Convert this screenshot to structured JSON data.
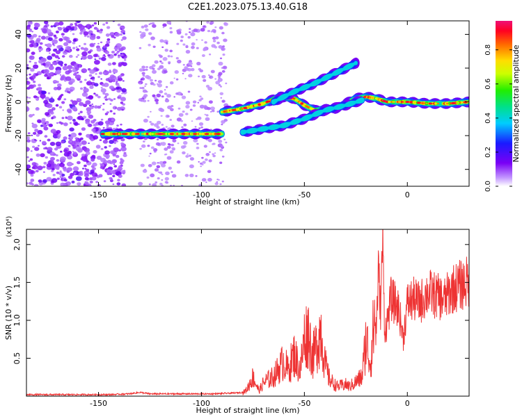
{
  "title": "C2E1.2023.075.13.40.G18",
  "colors": {
    "snr_line": "#ee3333",
    "background": "#ffffff",
    "axis": "#000000"
  },
  "chart_data": [
    {
      "type": "heatmap",
      "xlabel": "Height of straight line (km)",
      "ylabel": "Frequency (Hz)",
      "xlim": [
        -185,
        30
      ],
      "ylim": [
        -50,
        48
      ],
      "x_ticks": [
        -150,
        -100,
        -50,
        0
      ],
      "x_tick_labels": [
        "-150",
        "-100",
        "-50",
        "0"
      ],
      "y_ticks": [
        -40,
        -20,
        0,
        20,
        40
      ],
      "y_tick_labels": [
        "-40",
        "-20",
        "0",
        "20",
        "40"
      ],
      "colorbar": {
        "label": "Normalized spectral amplitude",
        "range": [
          0,
          0.97
        ],
        "ticks": [
          0.0,
          0.2,
          0.4,
          0.6,
          0.8
        ],
        "tick_labels": [
          "0.0",
          "0.2",
          "0.4",
          "0.6",
          "0.8"
        ],
        "colormap": "rainbow (white → violet → blue → cyan → green → yellow → red → magenta)"
      },
      "features": [
        {
          "name": "noise band",
          "x_range": [
            -185,
            -137
          ],
          "frequency_range": [
            -50,
            48
          ],
          "amplitude": 0.1
        },
        {
          "name": "noise band",
          "x_range": [
            -130,
            -88
          ],
          "frequency_range": [
            -50,
            48
          ],
          "amplitude": 0.05
        },
        {
          "name": "ridge",
          "points": [
            [
              -148,
              -19
            ],
            [
              -135,
              -19
            ],
            [
              -120,
              -19
            ],
            [
              -105,
              -19
            ],
            [
              -90,
              -19
            ]
          ],
          "amplitude": 0.8
        },
        {
          "name": "ridge",
          "points": [
            [
              -90,
              -6
            ],
            [
              -80,
              -4
            ],
            [
              -70,
              -1
            ],
            [
              -62,
              3
            ],
            [
              -55,
              2
            ],
            [
              -50,
              -2
            ],
            [
              -45,
              -5
            ],
            [
              -35,
              -4
            ],
            [
              -25,
              2
            ],
            [
              -20,
              3
            ],
            [
              -15,
              2
            ],
            [
              -10,
              0
            ],
            [
              0,
              0
            ],
            [
              10,
              -1
            ],
            [
              20,
              -1
            ],
            [
              30,
              0
            ]
          ],
          "amplitude": 0.7
        },
        {
          "name": "ridge",
          "points": [
            [
              -80,
              -18
            ],
            [
              -70,
              -16
            ],
            [
              -60,
              -14
            ],
            [
              -50,
              -10
            ],
            [
              -40,
              -5
            ],
            [
              -30,
              -2
            ],
            [
              -22,
              1
            ]
          ],
          "amplitude": 0.3
        },
        {
          "name": "ridge",
          "points": [
            [
              -65,
              0
            ],
            [
              -55,
              6
            ],
            [
              -45,
              11
            ],
            [
              -35,
              17
            ],
            [
              -25,
              23
            ]
          ],
          "amplitude": 0.3
        }
      ]
    },
    {
      "type": "line",
      "xlabel": "Height of straight line (km)",
      "ylabel": "SNR (10 * v/v)",
      "y_multiplier": "(x10⁴)",
      "xlim": [
        -185,
        30
      ],
      "ylim": [
        0,
        2.2
      ],
      "x_ticks": [
        -150,
        -100,
        -50,
        0
      ],
      "x_tick_labels": [
        "-150",
        "-100",
        "-50",
        "0"
      ],
      "y_ticks": [
        0.5,
        1.0,
        1.5,
        2.0
      ],
      "y_tick_labels": [
        "0.5",
        "1.0",
        "1.5",
        "2.0"
      ],
      "series": [
        {
          "x": [
            -185,
            -175,
            -165,
            -155,
            -145,
            -135,
            -130,
            -125,
            -115,
            -105,
            -95,
            -85,
            -80,
            -78,
            -75,
            -73,
            -72,
            -70,
            -68,
            -65,
            -62,
            -60,
            -58,
            -55,
            -52,
            -50,
            -48,
            -46,
            -44,
            -42,
            -40,
            -38,
            -36,
            -34,
            -30,
            -28,
            -25,
            -22,
            -20,
            -18,
            -16,
            -15,
            -14,
            -13,
            -12,
            -11,
            -10,
            -8,
            -6,
            -4,
            -2,
            0,
            3,
            6,
            10,
            14,
            18,
            22,
            26,
            30
          ],
          "values": [
            0.02,
            0.02,
            0.02,
            0.02,
            0.02,
            0.03,
            0.05,
            0.03,
            0.03,
            0.03,
            0.03,
            0.04,
            0.05,
            0.1,
            0.3,
            0.15,
            0.08,
            0.2,
            0.25,
            0.3,
            0.45,
            0.55,
            0.4,
            0.65,
            0.4,
            0.9,
            1.0,
            0.6,
            0.8,
            1.05,
            0.5,
            0.28,
            0.2,
            0.15,
            0.18,
            0.15,
            0.22,
            0.3,
            0.9,
            0.5,
            1.2,
            1.0,
            1.75,
            1.2,
            2.2,
            0.9,
            1.0,
            1.35,
            1.3,
            1.2,
            0.8,
            1.3,
            1.35,
            1.3,
            1.45,
            1.4,
            1.35,
            1.5,
            1.55,
            1.6
          ]
        }
      ]
    }
  ]
}
